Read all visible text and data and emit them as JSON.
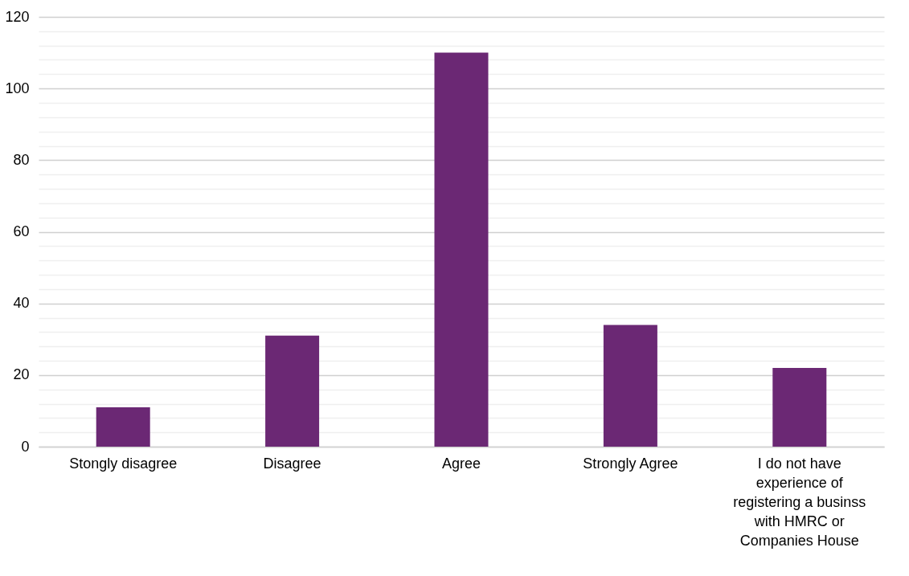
{
  "chart_data": {
    "type": "bar",
    "categories": [
      "Stongly disagree",
      "Disagree",
      "Agree",
      "Strongly Agree",
      "I do not have experience of registering a businss with HMRC or Companies House"
    ],
    "values": [
      11,
      31,
      110,
      34,
      22
    ],
    "color": "#6b2874",
    "ylim": [
      0,
      120
    ],
    "yticks": [
      0,
      {
        "value": 4,
        "label": null
      },
      {
        "value": 8,
        "label": null
      },
      {
        "value": 12,
        "label": null
      },
      {
        "value": 16,
        "label": null
      },
      20,
      {
        "value": 24,
        "label": null
      },
      {
        "value": 28,
        "label": null
      },
      {
        "value": 32,
        "label": null
      },
      {
        "value": 36,
        "label": null
      },
      40,
      {
        "value": 44,
        "label": null
      },
      {
        "value": 48,
        "label": null
      },
      {
        "value": 52,
        "label": null
      },
      {
        "value": 56,
        "label": null
      },
      60,
      {
        "value": 64,
        "label": null
      },
      {
        "value": 68,
        "label": null
      },
      {
        "value": 72,
        "label": null
      },
      {
        "value": 76,
        "label": null
      },
      80,
      {
        "value": 84,
        "label": null
      },
      {
        "value": 88,
        "label": null
      },
      {
        "value": 92,
        "label": null
      },
      {
        "value": 96,
        "label": null
      },
      100,
      {
        "value": 104,
        "label": null
      },
      {
        "value": 108,
        "label": null
      },
      {
        "value": 112,
        "label": null
      },
      {
        "value": 116,
        "label": null
      },
      120
    ],
    "grid": "y"
  }
}
